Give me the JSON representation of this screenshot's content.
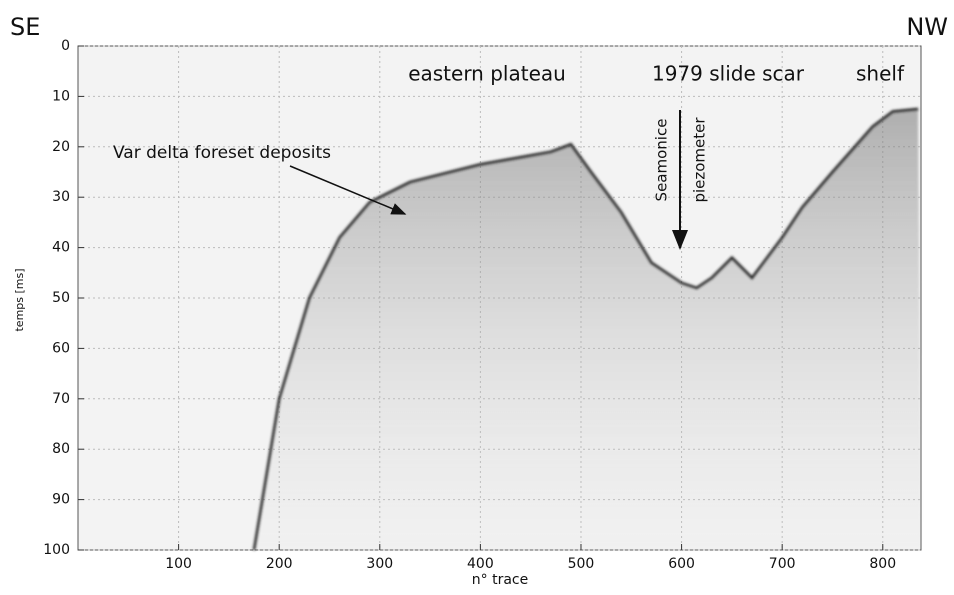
{
  "chart_data": {
    "type": "profile",
    "corner_labels": [
      "SE",
      "NW"
    ],
    "annotations": [
      "eastern plateau",
      "1979 slide scar",
      "shelf",
      "Var delta foreset deposits",
      "Seamonice",
      "piezometer"
    ],
    "xlabel": "n° trace",
    "ylabel": "temps [ms]",
    "x": [
      175,
      200,
      230,
      260,
      290,
      330,
      400,
      470,
      490,
      510,
      540,
      570,
      600,
      615,
      630,
      650,
      670,
      700,
      720,
      750,
      790,
      810,
      835
    ],
    "values": [
      100,
      70,
      50,
      38,
      31,
      27,
      23.5,
      21,
      19.5,
      25,
      33,
      43,
      47,
      48,
      46,
      42,
      46,
      38,
      32,
      25,
      16,
      13,
      12.5
    ],
    "color": "#222222",
    "xlim": [
      0,
      838
    ],
    "ylim": [
      100,
      0
    ],
    "xticks": [
      100,
      200,
      300,
      400,
      500,
      600,
      700,
      800
    ],
    "yticks": [
      0,
      10,
      20,
      30,
      40,
      50,
      60,
      70,
      80,
      90,
      100
    ],
    "grid": true
  }
}
